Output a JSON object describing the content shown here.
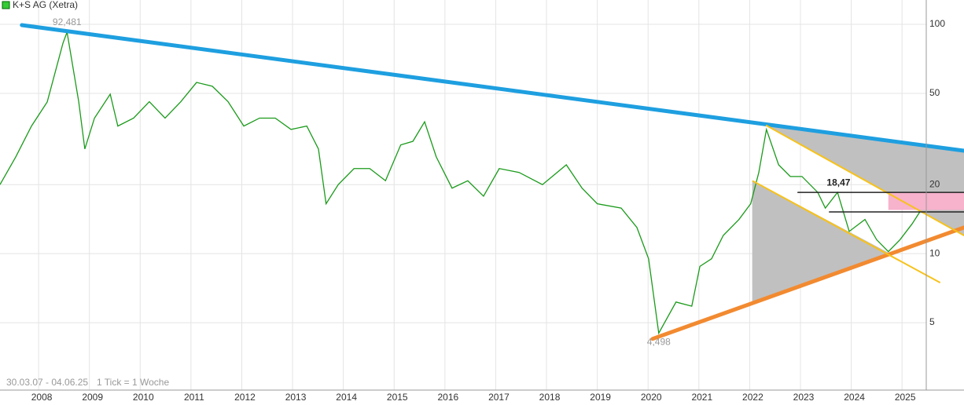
{
  "chart_data": {
    "type": "line",
    "log_scale": true,
    "grid": true,
    "date_range": "30.03.07 - 04.06.25",
    "note": "1 Tick = 1 Woche",
    "x": [
      2007.24,
      2007.55,
      2007.86,
      2008.17,
      2008.48,
      2008.56,
      2008.79,
      2008.91,
      2009.1,
      2009.41,
      2009.56,
      2009.87,
      2010.18,
      2010.49,
      2010.8,
      2011.11,
      2011.42,
      2011.73,
      2012.04,
      2012.35,
      2012.66,
      2012.97,
      2013.28,
      2013.51,
      2013.66,
      2013.9,
      2014.21,
      2014.52,
      2014.83,
      2015.13,
      2015.37,
      2015.6,
      2015.83,
      2016.14,
      2016.45,
      2016.76,
      2017.07,
      2017.46,
      2017.92,
      2018.39,
      2018.7,
      2019.0,
      2019.47,
      2019.78,
      2020.01,
      2020.21,
      2020.55,
      2020.86,
      2021.02,
      2021.25,
      2021.48,
      2021.79,
      2022.02,
      2022.18,
      2022.33,
      2022.57,
      2022.8,
      2023.03,
      2023.34,
      2023.49,
      2023.73,
      2023.96,
      2024.27,
      2024.5,
      2024.73,
      2024.96,
      2025.2,
      2025.35
    ],
    "series": [
      {
        "name": "K+S AG (Xetra)",
        "color": "#1a9a1a",
        "values": [
          20,
          26.4,
          36,
          45.9,
          82.8,
          92.481,
          46,
          28.6,
          39,
          49.6,
          36,
          39,
          46,
          39,
          46,
          55.8,
          53.7,
          46,
          36,
          39,
          39,
          34.8,
          36,
          28.6,
          16.5,
          20,
          23.5,
          23.5,
          20.8,
          29.8,
          30.9,
          37.6,
          26.4,
          19.3,
          20.8,
          17.8,
          23.5,
          22.6,
          20,
          24.4,
          19.3,
          16.5,
          15.8,
          13.0,
          9.5,
          4.498,
          6.15,
          5.9,
          8.8,
          9.5,
          12.0,
          14.1,
          16.5,
          22.6,
          34.8,
          24.4,
          21.7,
          21.7,
          18.5,
          15.8,
          18.5,
          12.5,
          14.1,
          11.5,
          10.2,
          11.5,
          13.5,
          15.2
        ]
      }
    ],
    "xlim": [
      2007.24,
      2026.22
    ],
    "ylim": [
      2.54,
      127.7
    ],
    "xticks": [
      2008,
      2009,
      2010,
      2011,
      2012,
      2013,
      2014,
      2015,
      2016,
      2017,
      2018,
      2019,
      2020,
      2021,
      2022,
      2023,
      2024,
      2025
    ],
    "yticks": [
      5,
      10,
      20,
      50,
      100
    ],
    "areas": [
      {
        "color": "#c0c0c0",
        "x": [
          2022.05,
          2022.05,
          2024.73
        ],
        "values": [
          20.9,
          6.15,
          10.1
        ]
      },
      {
        "color": "#c0c0c0",
        "x": [
          2022.33,
          2026.22,
          2026.22
        ],
        "values": [
          36.2,
          28.1,
          12.0
        ]
      },
      {
        "color": "#f7b2cc",
        "x": [
          2024.73,
          2026.22,
          2026.22,
          2024.73
        ],
        "values": [
          18.5,
          18.5,
          15.5,
          15.5
        ]
      }
    ],
    "trendlines": [
      {
        "color": "#1e9fe0",
        "width": 5,
        "x": [
          2007.67,
          2026.22
        ],
        "values": [
          99.2,
          28.1
        ]
      },
      {
        "color": "#f28a30",
        "width": 5,
        "x": [
          2020.09,
          2026.22
        ],
        "values": [
          4.25,
          13.0
        ]
      },
      {
        "color": "#f7c21a",
        "width": 2,
        "x": [
          2022.33,
          2026.22
        ],
        "values": [
          36.2,
          12.0
        ]
      },
      {
        "color": "#f7c21a",
        "width": 2,
        "x": [
          2022.07,
          2025.74
        ],
        "values": [
          20.7,
          7.49
        ]
      },
      {
        "color": "#222222",
        "width": 1.5,
        "x": [
          2022.95,
          2026.22
        ],
        "values": [
          18.5,
          18.5
        ]
      },
      {
        "color": "#222222",
        "width": 1.5,
        "x": [
          2023.57,
          2026.22
        ],
        "values": [
          15.2,
          15.2
        ]
      }
    ],
    "annotations": [
      {
        "text": "92,481",
        "x": 2008.56,
        "y": 92.481,
        "pos": "above",
        "color": "#999999"
      },
      {
        "text": "4,498",
        "x": 2020.21,
        "y": 4.498,
        "pos": "below",
        "color": "#999999"
      },
      {
        "text": "18,47",
        "x": 2023.75,
        "y": 18.5,
        "pos": "above",
        "color": "#222222"
      }
    ]
  }
}
